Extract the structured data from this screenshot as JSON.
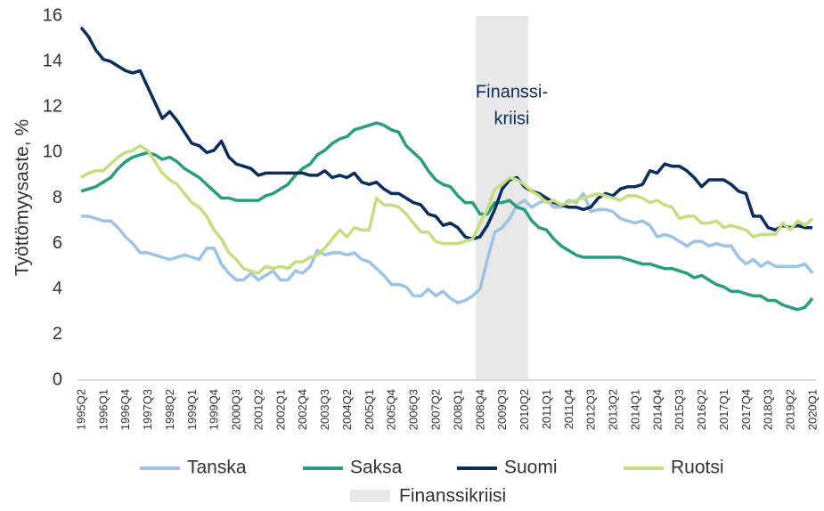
{
  "chart_data": {
    "type": "line",
    "ylabel": "Työttömyysaste, %",
    "annotation": [
      "Finanssi-",
      "kriisi"
    ],
    "ylim": [
      0,
      16
    ],
    "yticks": [
      0,
      2,
      4,
      6,
      8,
      10,
      12,
      14,
      16
    ],
    "categories": [
      "1995Q2",
      null,
      null,
      "1996Q1",
      null,
      null,
      "1996Q4",
      null,
      null,
      "1997Q3",
      null,
      null,
      "1998Q2",
      null,
      null,
      "1999Q1",
      null,
      null,
      "1999Q4",
      null,
      null,
      "2000Q3",
      null,
      null,
      "2001Q2",
      null,
      null,
      "2002Q1",
      null,
      null,
      "2002Q4",
      null,
      null,
      "2003Q3",
      null,
      null,
      "2004Q2",
      null,
      null,
      "2005Q1",
      null,
      null,
      "2005Q4",
      null,
      null,
      "2006Q3",
      null,
      null,
      "2007Q2",
      null,
      null,
      "2008Q1",
      null,
      null,
      "2008Q4",
      null,
      null,
      "2009Q3",
      null,
      null,
      "2010Q2",
      null,
      null,
      "2011Q1",
      null,
      null,
      "2011Q4",
      null,
      null,
      "2012Q3",
      null,
      null,
      "2013Q2",
      null,
      null,
      "2014Q1",
      null,
      null,
      "2014Q4",
      null,
      null,
      "2015Q3",
      null,
      null,
      "2016Q2",
      null,
      null,
      "2017Q1",
      null,
      null,
      "2017Q4",
      null,
      null,
      "2018Q3",
      null,
      null,
      "2019Q2",
      null,
      null,
      "2020Q1"
    ],
    "series": [
      {
        "name": "Finanssikriisi",
        "type": "bar",
        "color": "#e8e8e8",
        "values": [
          null,
          null,
          null,
          null,
          null,
          null,
          null,
          null,
          null,
          null,
          null,
          null,
          null,
          null,
          null,
          null,
          null,
          null,
          null,
          null,
          null,
          null,
          null,
          null,
          null,
          null,
          null,
          null,
          null,
          null,
          null,
          null,
          null,
          null,
          null,
          null,
          null,
          null,
          null,
          null,
          null,
          null,
          null,
          null,
          null,
          null,
          null,
          null,
          null,
          null,
          null,
          null,
          null,
          null,
          16,
          16,
          16,
          16,
          16,
          16,
          16,
          null,
          null,
          null,
          null,
          null,
          null,
          null,
          null,
          null,
          null,
          null,
          null,
          null,
          null,
          null,
          null,
          null,
          null,
          null,
          null,
          null,
          null,
          null,
          null,
          null,
          null,
          null,
          null,
          null,
          null,
          null,
          null,
          null,
          null,
          null,
          null,
          null,
          null,
          null
        ]
      },
      {
        "name": "Tanska",
        "type": "line",
        "color": "#9dc3e6",
        "values": [
          7.2,
          7.2,
          7.1,
          7.0,
          7.0,
          6.7,
          6.3,
          6.0,
          5.6,
          5.6,
          5.5,
          5.4,
          5.3,
          5.4,
          5.5,
          5.4,
          5.3,
          5.8,
          5.8,
          5.1,
          4.7,
          4.4,
          4.4,
          4.7,
          4.4,
          4.6,
          4.8,
          4.4,
          4.4,
          4.8,
          4.7,
          5.0,
          5.7,
          5.5,
          5.6,
          5.6,
          5.5,
          5.6,
          5.3,
          5.2,
          4.9,
          4.6,
          4.2,
          4.2,
          4.1,
          3.7,
          3.7,
          4.0,
          3.7,
          3.9,
          3.6,
          3.4,
          3.5,
          3.7,
          4.0,
          5.3,
          6.5,
          6.7,
          7.1,
          7.7,
          7.9,
          7.6,
          7.8,
          7.9,
          7.6,
          7.6,
          7.9,
          7.8,
          8.2,
          7.4,
          7.5,
          7.5,
          7.4,
          7.1,
          7.0,
          6.9,
          7.0,
          6.8,
          6.3,
          6.4,
          6.3,
          6.1,
          5.9,
          6.1,
          6.1,
          5.9,
          6.0,
          5.9,
          5.9,
          5.4,
          5.1,
          5.3,
          5.0,
          5.2,
          5.0,
          5.0,
          5.0,
          5.0,
          5.1,
          4.7
        ]
      },
      {
        "name": "Saksa",
        "type": "line",
        "color": "#2a9d7f",
        "values": [
          8.3,
          8.4,
          8.5,
          8.7,
          8.9,
          9.3,
          9.6,
          9.8,
          9.9,
          10.0,
          9.9,
          9.7,
          9.8,
          9.6,
          9.3,
          9.1,
          8.9,
          8.6,
          8.3,
          8.0,
          8.0,
          7.9,
          7.9,
          7.9,
          7.9,
          8.1,
          8.2,
          8.4,
          8.6,
          9.0,
          9.3,
          9.5,
          9.9,
          10.1,
          10.4,
          10.6,
          10.7,
          11.0,
          11.1,
          11.2,
          11.3,
          11.2,
          11.0,
          10.9,
          10.3,
          10.0,
          9.7,
          9.2,
          8.8,
          8.6,
          8.5,
          8.1,
          7.8,
          7.8,
          7.3,
          7.3,
          7.8,
          7.8,
          7.9,
          7.6,
          7.5,
          7.0,
          6.7,
          6.6,
          6.2,
          5.9,
          5.7,
          5.5,
          5.4,
          5.4,
          5.4,
          5.4,
          5.4,
          5.4,
          5.3,
          5.2,
          5.1,
          5.1,
          5.0,
          4.9,
          4.9,
          4.8,
          4.7,
          4.5,
          4.6,
          4.4,
          4.2,
          4.1,
          3.9,
          3.9,
          3.8,
          3.7,
          3.7,
          3.5,
          3.5,
          3.3,
          3.2,
          3.1,
          3.2,
          3.6
        ]
      },
      {
        "name": "Suomi",
        "type": "line",
        "color": "#0b2d5e",
        "values": [
          15.5,
          15.1,
          14.5,
          14.1,
          14.0,
          13.8,
          13.6,
          13.5,
          13.6,
          12.9,
          12.2,
          11.5,
          11.8,
          11.4,
          10.9,
          10.4,
          10.3,
          10.0,
          10.1,
          10.5,
          9.8,
          9.5,
          9.4,
          9.3,
          9.0,
          9.1,
          9.1,
          9.1,
          9.1,
          9.1,
          9.1,
          9.0,
          9.0,
          9.2,
          8.9,
          9.0,
          8.9,
          9.1,
          8.7,
          8.6,
          8.7,
          8.4,
          8.2,
          8.2,
          8.0,
          7.8,
          7.7,
          7.3,
          7.2,
          6.8,
          6.9,
          6.7,
          6.3,
          6.2,
          6.3,
          6.8,
          7.5,
          8.4,
          8.8,
          8.9,
          8.5,
          8.3,
          8.2,
          8.0,
          7.8,
          7.7,
          7.6,
          7.6,
          7.5,
          7.6,
          8.0,
          8.2,
          8.1,
          8.4,
          8.5,
          8.5,
          8.6,
          9.2,
          9.1,
          9.5,
          9.4,
          9.4,
          9.2,
          8.9,
          8.5,
          8.8,
          8.8,
          8.8,
          8.6,
          8.3,
          8.2,
          7.2,
          7.2,
          6.7,
          6.6,
          6.8,
          6.7,
          6.8,
          6.7,
          6.7
        ]
      },
      {
        "name": "Ruotsi",
        "type": "line",
        "color": "#c5de80",
        "values": [
          8.9,
          9.1,
          9.2,
          9.2,
          9.5,
          9.8,
          10.0,
          10.1,
          10.3,
          10.1,
          9.6,
          9.1,
          8.8,
          8.6,
          8.2,
          7.8,
          7.6,
          7.2,
          6.6,
          6.2,
          5.6,
          5.3,
          4.9,
          4.8,
          4.7,
          5.0,
          4.9,
          5.0,
          4.9,
          5.2,
          5.2,
          5.4,
          5.5,
          5.8,
          6.2,
          6.6,
          6.3,
          6.7,
          6.6,
          6.6,
          8.0,
          7.7,
          7.7,
          7.6,
          7.3,
          6.9,
          6.5,
          6.5,
          6.1,
          6.0,
          6.0,
          6.0,
          6.1,
          6.2,
          6.9,
          7.5,
          8.4,
          8.6,
          8.9,
          8.8,
          8.6,
          8.3,
          8.1,
          7.8,
          7.9,
          7.7,
          7.8,
          7.9,
          8.0,
          8.1,
          8.2,
          8.1,
          8.0,
          7.9,
          8.1,
          8.1,
          8.0,
          7.8,
          7.9,
          7.7,
          7.6,
          7.1,
          7.2,
          7.2,
          6.9,
          6.9,
          7.0,
          6.7,
          6.8,
          6.7,
          6.6,
          6.3,
          6.4,
          6.4,
          6.4,
          6.9,
          6.6,
          7.0,
          6.8,
          7.1
        ]
      }
    ]
  }
}
